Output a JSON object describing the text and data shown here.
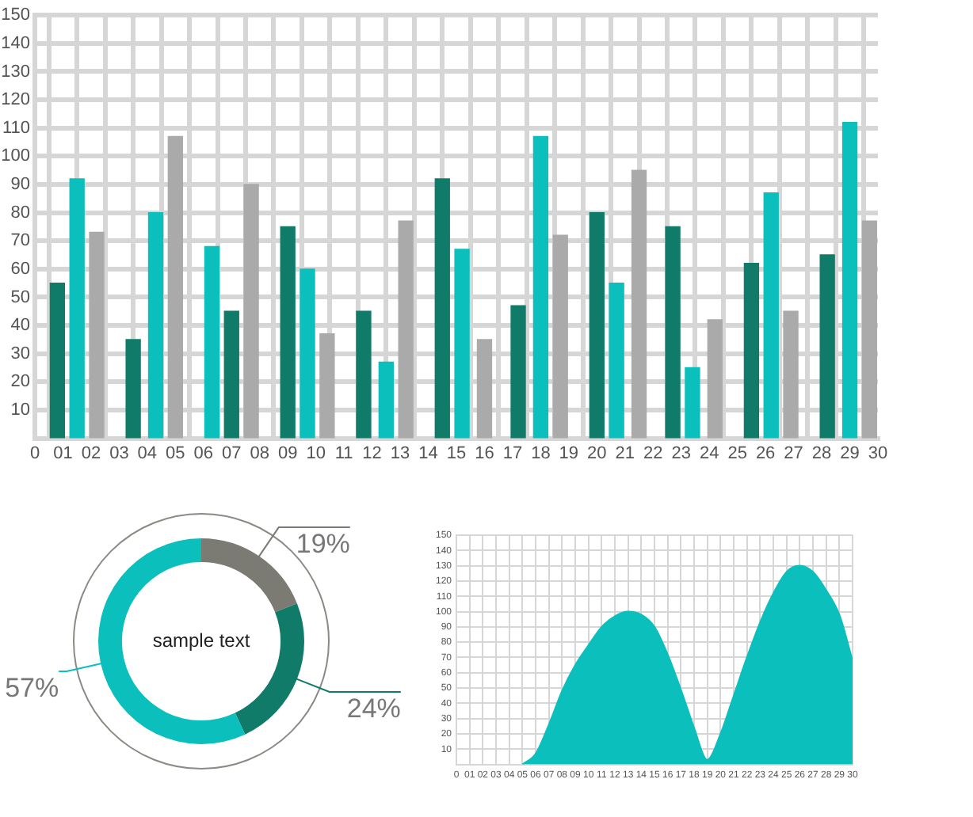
{
  "chart_data": [
    {
      "type": "bar",
      "grid": true,
      "xlim": [
        0,
        30
      ],
      "ylim": [
        0,
        150
      ],
      "xticks": [
        0,
        {
          "value": 1,
          "label": "01"
        },
        {
          "value": 2,
          "label": "02"
        },
        {
          "value": 3,
          "label": "03"
        },
        {
          "value": 4,
          "label": "04"
        },
        {
          "value": 5,
          "label": "05"
        },
        {
          "value": 6,
          "label": "06"
        },
        {
          "value": 7,
          "label": "07"
        },
        {
          "value": 8,
          "label": "08"
        },
        {
          "value": 9,
          "label": "09"
        },
        10,
        11,
        12,
        13,
        14,
        15,
        16,
        17,
        18,
        19,
        20,
        21,
        22,
        23,
        24,
        25,
        26,
        27,
        28,
        29,
        30
      ],
      "yticks": [
        10,
        20,
        30,
        40,
        50,
        60,
        70,
        80,
        90,
        100,
        110,
        120,
        130,
        140,
        150
      ],
      "series": [
        {
          "color": "#0f7b68",
          "x": [
            0.8,
            3.5,
            7.0,
            9.0,
            11.7,
            14.5,
            17.2,
            20.0,
            22.7,
            25.5,
            28.2
          ],
          "values": [
            55,
            35,
            45,
            75,
            45,
            92,
            47,
            80,
            75,
            62,
            65
          ]
        },
        {
          "color": "#0bbfbc",
          "x": [
            1.5,
            4.3,
            6.3,
            9.7,
            12.5,
            15.2,
            18.0,
            20.7,
            23.4,
            26.2,
            29.0
          ],
          "values": [
            92,
            80,
            68,
            60,
            27,
            67,
            107,
            55,
            25,
            87,
            112
          ]
        },
        {
          "color": "#aaaaaa",
          "x": [
            2.2,
            5.0,
            7.7,
            10.4,
            13.2,
            16.0,
            18.7,
            21.5,
            24.2,
            26.9,
            29.7
          ],
          "values": [
            73,
            107,
            90,
            37,
            77,
            35,
            72,
            95,
            42,
            45,
            77
          ]
        }
      ]
    },
    {
      "type": "donut",
      "categories": [
        null,
        null,
        null
      ],
      "values": [
        19,
        24,
        57
      ],
      "colors": [
        "#7b7b74",
        "#0f7b68",
        "#0bbfbc"
      ],
      "value_labels": [
        "19%",
        "24%",
        "57%"
      ],
      "annotations": [
        "sample text"
      ]
    },
    {
      "type": "area",
      "grid": true,
      "color": "#0bbfbc",
      "xlim": [
        0,
        30
      ],
      "ylim": [
        0,
        150
      ],
      "xticks": [
        0,
        {
          "value": 1,
          "label": "01"
        },
        {
          "value": 2,
          "label": "02"
        },
        {
          "value": 3,
          "label": "03"
        },
        {
          "value": 4,
          "label": "04"
        },
        {
          "value": 5,
          "label": "05"
        },
        {
          "value": 6,
          "label": "06"
        },
        {
          "value": 7,
          "label": "07"
        },
        {
          "value": 8,
          "label": "08"
        },
        {
          "value": 9,
          "label": "09"
        },
        10,
        11,
        12,
        13,
        14,
        15,
        16,
        17,
        18,
        19,
        20,
        21,
        22,
        23,
        24,
        25,
        26,
        27,
        28,
        29,
        30
      ],
      "yticks": [
        10,
        20,
        30,
        40,
        50,
        60,
        70,
        80,
        90,
        100,
        110,
        120,
        130,
        140,
        150
      ],
      "x": [
        5,
        6,
        7,
        8,
        9,
        10,
        11,
        12,
        13,
        14,
        15,
        16,
        17,
        18,
        19,
        20,
        21,
        22,
        23,
        24,
        25,
        26,
        27,
        28,
        29,
        30
      ],
      "values": [
        0,
        7,
        26,
        48,
        65,
        78,
        90,
        97,
        100,
        98,
        90,
        72,
        49,
        24,
        3,
        20,
        45,
        70,
        93,
        112,
        126,
        130,
        126,
        114,
        98,
        68
      ]
    }
  ]
}
